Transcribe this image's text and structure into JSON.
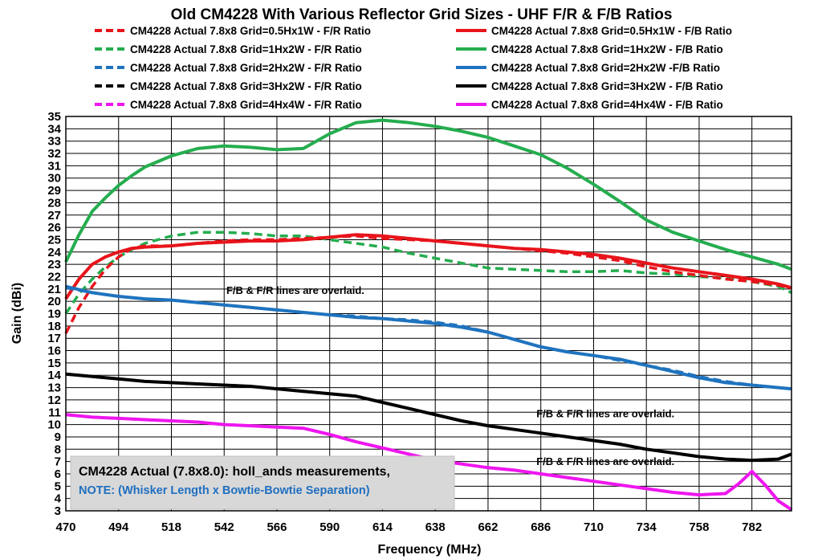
{
  "chart_data": {
    "type": "line",
    "title": "Old CM4228 With Various Reflector Grid Sizes - UHF F/R & F/B Ratios",
    "xlabel": "Frequency (MHz)",
    "ylabel": "Gain (dBi)",
    "xlim": [
      470,
      800
    ],
    "ylim": [
      3,
      35
    ],
    "x_ticks": [
      470,
      494,
      518,
      542,
      566,
      590,
      614,
      638,
      662,
      686,
      710,
      734,
      758,
      782
    ],
    "y_ticks": [
      3,
      4,
      5,
      6,
      7,
      8,
      9,
      10,
      11,
      12,
      13,
      14,
      15,
      16,
      17,
      18,
      19,
      20,
      21,
      22,
      23,
      24,
      25,
      26,
      27,
      28,
      29,
      30,
      31,
      32,
      33,
      34,
      35
    ],
    "grid": true,
    "legend_position": "top",
    "colors": {
      "red": "#e8141b",
      "green": "#25ad4f",
      "blue": "#1f73be",
      "black": "#000000",
      "magenta": "#ee16ee"
    },
    "series": [
      {
        "name": "CM4228  Actual  7.8x8 Grid=0.5Hx1W  - F/R Ratio",
        "color": "red",
        "style": "dashed",
        "x": [
          470,
          476,
          482,
          488,
          494,
          500,
          506,
          518,
          530,
          542,
          554,
          566,
          578,
          590,
          602,
          614,
          626,
          638,
          650,
          662,
          674,
          686,
          698,
          710,
          722,
          734,
          746,
          758,
          770,
          782,
          794,
          800
        ],
        "y": [
          17.4,
          19.5,
          21.2,
          22.6,
          23.6,
          24.3,
          24.5,
          24.5,
          24.7,
          24.9,
          25.0,
          25.0,
          25.1,
          25.2,
          25.3,
          25.1,
          25.0,
          24.9,
          24.7,
          24.5,
          24.3,
          24.1,
          23.9,
          23.6,
          23.3,
          22.8,
          22.4,
          22.1,
          21.8,
          21.6,
          21.3,
          21.1
        ]
      },
      {
        "name": "CM4228  Actual  7.8x8 Grid=0.5Hx1W  - F/B Ratio",
        "color": "red",
        "style": "solid",
        "x": [
          470,
          476,
          482,
          488,
          494,
          500,
          506,
          518,
          530,
          542,
          554,
          566,
          578,
          590,
          602,
          614,
          626,
          638,
          650,
          662,
          674,
          686,
          698,
          710,
          722,
          734,
          746,
          758,
          770,
          782,
          794,
          800
        ],
        "y": [
          20.2,
          21.8,
          23.0,
          23.6,
          24.0,
          24.3,
          24.4,
          24.5,
          24.7,
          24.8,
          24.9,
          24.9,
          25.0,
          25.2,
          25.4,
          25.3,
          25.1,
          24.9,
          24.7,
          24.5,
          24.3,
          24.2,
          24.0,
          23.8,
          23.5,
          23.1,
          22.7,
          22.4,
          22.1,
          21.8,
          21.4,
          21.1
        ]
      },
      {
        "name": "CM4228  Actual  7.8x8 Grid=1Hx2W  - F/R Ratio",
        "color": "green",
        "style": "dashed",
        "x": [
          470,
          476,
          482,
          488,
          494,
          500,
          506,
          518,
          530,
          542,
          554,
          566,
          578,
          590,
          602,
          614,
          626,
          638,
          650,
          662,
          674,
          686,
          698,
          710,
          722,
          734,
          746,
          758,
          770,
          782,
          794,
          800
        ],
        "y": [
          19.0,
          20.6,
          21.8,
          22.8,
          23.6,
          24.2,
          24.7,
          25.3,
          25.6,
          25.6,
          25.5,
          25.3,
          25.3,
          25.0,
          24.7,
          24.4,
          23.9,
          23.5,
          23.1,
          22.7,
          22.6,
          22.5,
          22.4,
          22.4,
          22.5,
          22.3,
          22.2,
          22.0,
          21.9,
          21.6,
          21.2,
          20.7
        ]
      },
      {
        "name": "CM4228  Actual  7.8x8 Grid=1Hx2W  - F/B Ratio",
        "color": "green",
        "style": "solid",
        "x": [
          470,
          476,
          482,
          488,
          494,
          500,
          506,
          518,
          530,
          542,
          554,
          566,
          578,
          590,
          602,
          614,
          626,
          638,
          650,
          662,
          674,
          686,
          698,
          710,
          722,
          734,
          746,
          758,
          770,
          782,
          794,
          800
        ],
        "y": [
          23.2,
          25.4,
          27.3,
          28.4,
          29.4,
          30.2,
          30.9,
          31.8,
          32.4,
          32.6,
          32.5,
          32.3,
          32.4,
          33.6,
          34.5,
          34.7,
          34.5,
          34.2,
          33.8,
          33.3,
          32.6,
          31.9,
          30.8,
          29.5,
          28.1,
          26.6,
          25.6,
          24.9,
          24.2,
          23.6,
          23.0,
          22.6
        ]
      },
      {
        "name": "CM4228  Actual  7.8x8 Grid=2Hx2W  - F/R Ratio",
        "color": "blue",
        "style": "dashed",
        "x": [
          470,
          482,
          494,
          506,
          518,
          530,
          542,
          554,
          566,
          578,
          590,
          602,
          614,
          626,
          638,
          650,
          662,
          674,
          686,
          698,
          710,
          722,
          734,
          746,
          758,
          770,
          782,
          794,
          800
        ],
        "y": [
          21.1,
          20.7,
          20.4,
          20.2,
          20.1,
          19.9,
          19.7,
          19.5,
          19.3,
          19.1,
          18.9,
          18.8,
          18.6,
          18.5,
          18.3,
          18.0,
          17.5,
          16.9,
          16.3,
          15.9,
          15.6,
          15.2,
          14.8,
          14.4,
          13.9,
          13.5,
          13.2,
          13.0,
          12.9
        ]
      },
      {
        "name": "CM4228  Actual  7.8x8 Grid=2Hx2W  -F/B Ratio",
        "color": "blue",
        "style": "solid",
        "x": [
          470,
          482,
          494,
          506,
          518,
          530,
          542,
          554,
          566,
          578,
          590,
          602,
          614,
          626,
          638,
          650,
          662,
          674,
          686,
          698,
          710,
          722,
          734,
          746,
          758,
          770,
          782,
          794,
          800
        ],
        "y": [
          21.2,
          20.7,
          20.4,
          20.2,
          20.1,
          19.9,
          19.7,
          19.5,
          19.3,
          19.1,
          18.9,
          18.7,
          18.6,
          18.4,
          18.2,
          17.9,
          17.5,
          16.9,
          16.3,
          15.9,
          15.6,
          15.3,
          14.8,
          14.3,
          13.8,
          13.4,
          13.2,
          13.0,
          12.9
        ]
      },
      {
        "name": "CM4228  Actual  7.8x8 Grid=3Hx2W  - F/R Ratio",
        "color": "black",
        "style": "dashed",
        "x": [
          470,
          482,
          494,
          506,
          518,
          530,
          542,
          554,
          566,
          578,
          590,
          602,
          614,
          626,
          638,
          650,
          662,
          674,
          686,
          698,
          710,
          722,
          734,
          746,
          758,
          770,
          782,
          794,
          800
        ],
        "y": [
          14.1,
          13.9,
          13.7,
          13.5,
          13.4,
          13.3,
          13.2,
          13.1,
          12.9,
          12.7,
          12.5,
          12.3,
          11.8,
          11.3,
          10.8,
          10.3,
          9.9,
          9.6,
          9.3,
          9.0,
          8.7,
          8.4,
          8.0,
          7.7,
          7.4,
          7.2,
          7.1,
          7.2,
          7.6
        ]
      },
      {
        "name": "CM4228  Actual  7.8x8 Grid=3Hx2W  - F/B Ratio",
        "color": "black",
        "style": "solid",
        "x": [
          470,
          482,
          494,
          506,
          518,
          530,
          542,
          554,
          566,
          578,
          590,
          602,
          614,
          626,
          638,
          650,
          662,
          674,
          686,
          698,
          710,
          722,
          734,
          746,
          758,
          770,
          782,
          794,
          800
        ],
        "y": [
          14.1,
          13.9,
          13.7,
          13.5,
          13.4,
          13.3,
          13.2,
          13.1,
          12.9,
          12.7,
          12.5,
          12.3,
          11.8,
          11.3,
          10.8,
          10.3,
          9.9,
          9.6,
          9.3,
          9.0,
          8.7,
          8.4,
          8.0,
          7.7,
          7.4,
          7.2,
          7.1,
          7.2,
          7.6
        ]
      },
      {
        "name": "CM4228  Actual  7.8x8 Grid=4Hx4W  - F/R Ratio",
        "color": "magenta",
        "style": "dashed",
        "x": [
          470,
          482,
          494,
          506,
          518,
          530,
          542,
          554,
          566,
          578,
          590,
          602,
          614,
          626,
          638,
          650,
          662,
          674,
          686,
          698,
          710,
          722,
          734,
          746,
          758,
          770,
          776,
          782,
          788,
          794,
          800
        ],
        "y": [
          10.8,
          10.6,
          10.5,
          10.4,
          10.3,
          10.2,
          10.0,
          9.9,
          9.8,
          9.7,
          9.2,
          8.6,
          8.1,
          7.6,
          7.1,
          6.8,
          6.5,
          6.3,
          6.0,
          5.7,
          5.4,
          5.1,
          4.8,
          4.5,
          4.3,
          4.4,
          5.2,
          6.2,
          5.1,
          3.8,
          3.1
        ]
      },
      {
        "name": "CM4228  Actual  7.8x8 Grid=4Hx4W  - F/B Ratio",
        "color": "magenta",
        "style": "solid",
        "x": [
          470,
          482,
          494,
          506,
          518,
          530,
          542,
          554,
          566,
          578,
          590,
          602,
          614,
          626,
          638,
          650,
          662,
          674,
          686,
          698,
          710,
          722,
          734,
          746,
          758,
          770,
          776,
          782,
          788,
          794,
          800
        ],
        "y": [
          10.8,
          10.6,
          10.5,
          10.4,
          10.3,
          10.2,
          10.0,
          9.9,
          9.8,
          9.7,
          9.2,
          8.6,
          8.1,
          7.6,
          7.1,
          6.8,
          6.5,
          6.3,
          6.0,
          5.7,
          5.4,
          5.1,
          4.8,
          4.5,
          4.3,
          4.4,
          5.2,
          6.2,
          5.1,
          3.8,
          3.1
        ]
      }
    ],
    "annotations": [
      {
        "text": "F/B & F/R lines are overlaid.",
        "x": 543,
        "y": 20.6
      },
      {
        "text": "F/B & F/R lines are overlaid.",
        "x": 684,
        "y": 10.6
      },
      {
        "text": "F/B & F/R lines are overlaid.",
        "x": 684,
        "y": 6.7
      }
    ],
    "note_box": {
      "line1": "CM4228 Actual (7.8x8.0): holl_ands measurements,",
      "line2": "NOTE: (Whisker Length x Bowtie-Bowtie Separation)"
    }
  }
}
